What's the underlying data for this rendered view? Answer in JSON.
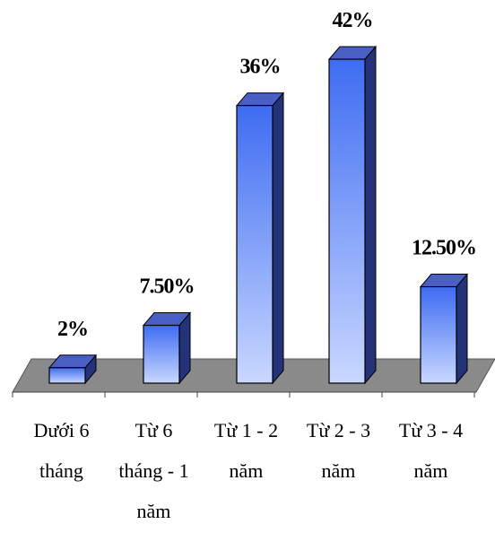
{
  "chart_data": {
    "type": "bar",
    "style": "3d",
    "categories": [
      [
        "Dưới 6",
        "tháng"
      ],
      [
        "Từ 6",
        "tháng - 1",
        "năm"
      ],
      [
        "Từ 1 - 2",
        "năm"
      ],
      [
        "Từ 2 - 3",
        "năm"
      ],
      [
        "Từ 3 - 4",
        "năm"
      ]
    ],
    "values": [
      2,
      7.5,
      36,
      42,
      12.5
    ],
    "data_labels": [
      "2%",
      "7.50%",
      "36%",
      "42%",
      "12.50%"
    ],
    "title": "",
    "xlabel": "",
    "ylabel": "",
    "ylim": [
      0,
      45
    ],
    "grid": false,
    "legend": "none",
    "colors": {
      "bar_top": "#3e6cf2",
      "bar_bottom": "#c9d8ff",
      "bar_side": "#24327a",
      "bar_cap": "#4a5fc4",
      "bar_outline": "#000000",
      "floor": "#8a8a8a",
      "label": "#000000"
    }
  }
}
